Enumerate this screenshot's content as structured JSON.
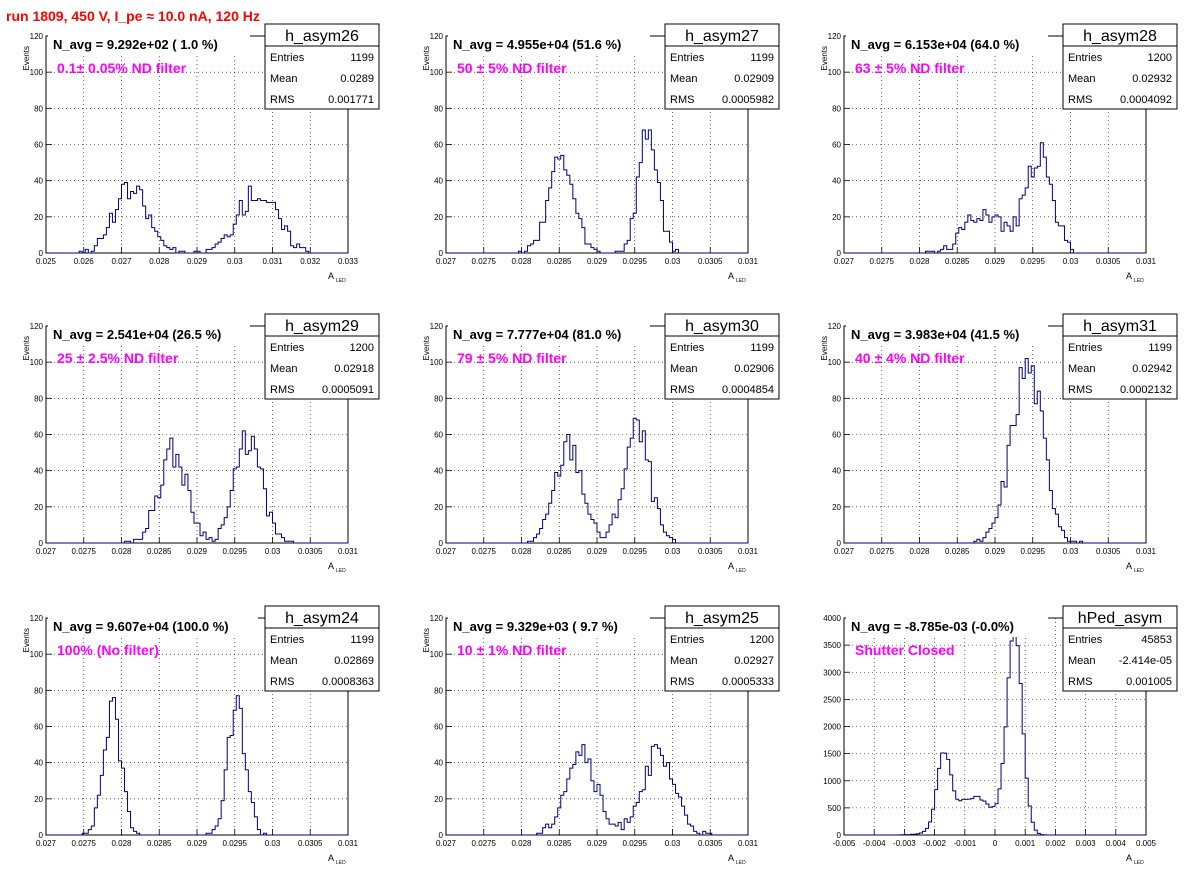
{
  "page": {
    "title": "run 1809,   450 V, I_pe ≈ 10.0 nA, 120 Hz",
    "colors": {
      "title": "#ff0000",
      "annotation": "#ff00ff",
      "histogram": "#000080",
      "grid": "#000000"
    }
  },
  "chart_data": [
    {
      "type": "bar",
      "histogram_name": "h_asym26",
      "title": "N_avg = 9.292e+02 ( 1.0 %)",
      "annotation": "0.1± 0.05% ND filter",
      "stats": [
        [
          "Entries",
          "1199"
        ],
        [
          "Mean",
          "0.0289"
        ],
        [
          "RMS",
          "0.001771"
        ]
      ],
      "xlabel": "A",
      "xlabel_sub": "LED",
      "ylabel": "Events",
      "xlim": [
        0.025,
        0.033
      ],
      "ylim": [
        0,
        120
      ],
      "xticks": [
        0.025,
        0.026,
        0.027,
        0.028,
        0.029,
        0.03,
        0.031,
        0.032,
        0.033
      ],
      "xtick_labels": [
        "0.025",
        "0.026",
        "0.027",
        "0.028",
        "0.029",
        "0.03",
        "0.031",
        "0.032",
        "0.033"
      ],
      "yticks": [
        0,
        20,
        40,
        60,
        80,
        100,
        120
      ],
      "ytick_labels": [
        "0",
        "20",
        "40",
        "60",
        "80",
        "100",
        "120"
      ],
      "bins": {
        "min": 0.025,
        "max": 0.033,
        "n": 100
      },
      "peaks": [
        {
          "mean": 0.02725,
          "sigma": 0.00045,
          "height": 35
        },
        {
          "mean": 0.0306,
          "sigma": 0.00052,
          "height": 34
        }
      ],
      "seed": 26
    },
    {
      "type": "bar",
      "histogram_name": "h_asym27",
      "title": "N_avg = 4.955e+04 (51.6 %)",
      "annotation": "50 ± 5% ND filter",
      "stats": [
        [
          "Entries",
          "1199"
        ],
        [
          "Mean",
          "0.02909"
        ],
        [
          "RMS",
          "0.0005982"
        ]
      ],
      "xlabel": "A",
      "xlabel_sub": "LED",
      "ylabel": "Events",
      "xlim": [
        0.027,
        0.031
      ],
      "ylim": [
        0,
        120
      ],
      "xticks": [
        0.027,
        0.0275,
        0.028,
        0.0285,
        0.029,
        0.0295,
        0.03,
        0.0305,
        0.031
      ],
      "xtick_labels": [
        "0.027",
        "0.0275",
        "0.028",
        "0.0285",
        "0.029",
        "0.0295",
        "0.03",
        "0.0305",
        "0.031"
      ],
      "yticks": [
        0,
        20,
        40,
        60,
        80,
        100,
        120
      ],
      "ytick_labels": [
        "0",
        "20",
        "40",
        "60",
        "80",
        "100",
        "120"
      ],
      "bins": {
        "min": 0.027,
        "max": 0.031,
        "n": 100
      },
      "peaks": [
        {
          "mean": 0.02852,
          "sigma": 0.00017,
          "height": 50
        },
        {
          "mean": 0.02968,
          "sigma": 0.00013,
          "height": 66
        }
      ],
      "seed": 27
    },
    {
      "type": "bar",
      "histogram_name": "h_asym28",
      "title": "N_avg = 6.153e+04 (64.0 %)",
      "annotation": "63 ± 5% ND filter",
      "stats": [
        [
          "Entries",
          "1200"
        ],
        [
          "Mean",
          "0.02932"
        ],
        [
          "RMS",
          "0.0004092"
        ]
      ],
      "xlabel": "A",
      "xlabel_sub": "LED",
      "ylabel": "Events",
      "xlim": [
        0.027,
        0.031
      ],
      "ylim": [
        0,
        120
      ],
      "xticks": [
        0.027,
        0.0275,
        0.028,
        0.0285,
        0.029,
        0.0295,
        0.03,
        0.0305,
        0.031
      ],
      "xtick_labels": [
        "0.027",
        "0.0275",
        "0.028",
        "0.0285",
        "0.029",
        "0.0295",
        "0.03",
        "0.0305",
        "0.031"
      ],
      "yticks": [
        0,
        20,
        40,
        60,
        80,
        100,
        120
      ],
      "ytick_labels": [
        "0",
        "20",
        "40",
        "60",
        "80",
        "100",
        "120"
      ],
      "bins": {
        "min": 0.027,
        "max": 0.031,
        "n": 100
      },
      "peaks": [
        {
          "mean": 0.02885,
          "sigma": 0.00024,
          "height": 24
        },
        {
          "mean": 0.02958,
          "sigma": 0.00018,
          "height": 54
        }
      ],
      "seed": 28
    },
    {
      "type": "bar",
      "histogram_name": "h_asym29",
      "title": "N_avg = 2.541e+04 (26.5 %)",
      "annotation": "25 ± 2.5% ND filter",
      "stats": [
        [
          "Entries",
          "1200"
        ],
        [
          "Mean",
          "0.02918"
        ],
        [
          "RMS",
          "0.0005091"
        ]
      ],
      "xlabel": "A",
      "xlabel_sub": "LED",
      "ylabel": "Events",
      "xlim": [
        0.027,
        0.031
      ],
      "ylim": [
        0,
        120
      ],
      "xticks": [
        0.027,
        0.0275,
        0.028,
        0.0285,
        0.029,
        0.0295,
        0.03,
        0.0305,
        0.031
      ],
      "xtick_labels": [
        "0.027",
        "0.0275",
        "0.028",
        "0.0285",
        "0.029",
        "0.0295",
        "0.03",
        "0.0305",
        "0.031"
      ],
      "yticks": [
        0,
        20,
        40,
        60,
        80,
        100,
        120
      ],
      "ytick_labels": [
        "0",
        "20",
        "40",
        "60",
        "80",
        "100",
        "120"
      ],
      "bins": {
        "min": 0.027,
        "max": 0.031,
        "n": 100
      },
      "peaks": [
        {
          "mean": 0.02868,
          "sigma": 0.00019,
          "height": 50
        },
        {
          "mean": 0.02968,
          "sigma": 0.00018,
          "height": 57
        }
      ],
      "seed": 29
    },
    {
      "type": "bar",
      "histogram_name": "h_asym30",
      "title": "N_avg = 7.777e+04 (81.0 %)",
      "annotation": "79 ± 5% ND filter",
      "stats": [
        [
          "Entries",
          "1199"
        ],
        [
          "Mean",
          "0.02906"
        ],
        [
          "RMS",
          "0.0004854"
        ]
      ],
      "xlabel": "A",
      "xlabel_sub": "LED",
      "ylabel": "Events",
      "xlim": [
        0.027,
        0.031
      ],
      "ylim": [
        0,
        120
      ],
      "xticks": [
        0.027,
        0.0275,
        0.028,
        0.0285,
        0.029,
        0.0295,
        0.03,
        0.0305,
        0.031
      ],
      "xtick_labels": [
        "0.027",
        "0.0275",
        "0.028",
        "0.0285",
        "0.029",
        "0.0295",
        "0.03",
        "0.0305",
        "0.031"
      ],
      "yticks": [
        0,
        20,
        40,
        60,
        80,
        100,
        120
      ],
      "ytick_labels": [
        "0",
        "20",
        "40",
        "60",
        "80",
        "100",
        "120"
      ],
      "bins": {
        "min": 0.027,
        "max": 0.031,
        "n": 100
      },
      "peaks": [
        {
          "mean": 0.02863,
          "sigma": 0.00018,
          "height": 54
        },
        {
          "mean": 0.02953,
          "sigma": 0.00017,
          "height": 63
        }
      ],
      "seed": 30
    },
    {
      "type": "bar",
      "histogram_name": "h_asym31",
      "title": "N_avg = 3.983e+04 (41.5 %)",
      "annotation": "40 ± 4% ND filter",
      "stats": [
        [
          "Entries",
          "1199"
        ],
        [
          "Mean",
          "0.02942"
        ],
        [
          "RMS",
          "0.0002132"
        ]
      ],
      "xlabel": "A",
      "xlabel_sub": "LED",
      "ylabel": "Events",
      "xlim": [
        0.027,
        0.031
      ],
      "ylim": [
        0,
        120
      ],
      "xticks": [
        0.027,
        0.0275,
        0.028,
        0.0285,
        0.029,
        0.0295,
        0.03,
        0.0305,
        0.031
      ],
      "xtick_labels": [
        "0.027",
        "0.0275",
        "0.028",
        "0.0285",
        "0.029",
        "0.0295",
        "0.03",
        "0.0305",
        "0.031"
      ],
      "yticks": [
        0,
        20,
        40,
        60,
        80,
        100,
        120
      ],
      "ytick_labels": [
        "0",
        "20",
        "40",
        "60",
        "80",
        "100",
        "120"
      ],
      "bins": {
        "min": 0.027,
        "max": 0.031,
        "n": 100
      },
      "peaks": [
        {
          "mean": 0.02943,
          "sigma": 0.00021,
          "height": 98
        }
      ],
      "seed": 31
    },
    {
      "type": "bar",
      "histogram_name": "h_asym24",
      "title": "N_avg = 9.607e+04 (100.0 %)",
      "annotation": "100% (No filter)",
      "stats": [
        [
          "Entries",
          "1199"
        ],
        [
          "Mean",
          "0.02869"
        ],
        [
          "RMS",
          "0.0008363"
        ]
      ],
      "xlabel": "A",
      "xlabel_sub": "LED",
      "ylabel": "Events",
      "xlim": [
        0.027,
        0.031
      ],
      "ylim": [
        0,
        120
      ],
      "xticks": [
        0.027,
        0.0275,
        0.028,
        0.0285,
        0.029,
        0.0295,
        0.03,
        0.0305,
        0.031
      ],
      "xtick_labels": [
        "0.027",
        "0.0275",
        "0.028",
        "0.0285",
        "0.029",
        "0.0295",
        "0.03",
        "0.0305",
        "0.031"
      ],
      "yticks": [
        0,
        20,
        40,
        60,
        80,
        100,
        120
      ],
      "ytick_labels": [
        "0",
        "20",
        "40",
        "60",
        "80",
        "100",
        "120"
      ],
      "bins": {
        "min": 0.027,
        "max": 0.031,
        "n": 100
      },
      "peaks": [
        {
          "mean": 0.02788,
          "sigma": 0.00012,
          "height": 68
        },
        {
          "mean": 0.02953,
          "sigma": 0.00012,
          "height": 70
        }
      ],
      "seed": 24
    },
    {
      "type": "bar",
      "histogram_name": "h_asym25",
      "title": "N_avg = 9.329e+03 ( 9.7 %)",
      "annotation": "10 ± 1% ND filter",
      "stats": [
        [
          "Entries",
          "1200"
        ],
        [
          "Mean",
          "0.02927"
        ],
        [
          "RMS",
          "0.0005333"
        ]
      ],
      "xlabel": "A",
      "xlabel_sub": "LED",
      "ylabel": "Events",
      "xlim": [
        0.027,
        0.031
      ],
      "ylim": [
        0,
        120
      ],
      "xticks": [
        0.027,
        0.0275,
        0.028,
        0.0285,
        0.029,
        0.0295,
        0.03,
        0.0305,
        0.031
      ],
      "xtick_labels": [
        "0.027",
        "0.0275",
        "0.028",
        "0.0285",
        "0.029",
        "0.0295",
        "0.03",
        "0.0305",
        "0.031"
      ],
      "yticks": [
        0,
        20,
        40,
        60,
        80,
        100,
        120
      ],
      "ytick_labels": [
        "0",
        "20",
        "40",
        "60",
        "80",
        "100",
        "120"
      ],
      "bins": {
        "min": 0.027,
        "max": 0.031,
        "n": 100
      },
      "peaks": [
        {
          "mean": 0.02878,
          "sigma": 0.0002,
          "height": 46
        },
        {
          "mean": 0.0298,
          "sigma": 0.00022,
          "height": 43
        }
      ],
      "seed": 25
    },
    {
      "type": "bar",
      "histogram_name": "hPed_asym",
      "title": "N_avg = -8.785e-03 (-0.0%)",
      "annotation": "Shutter Closed",
      "stats": [
        [
          "Entries",
          "45853"
        ],
        [
          "Mean",
          "-2.414e-05"
        ],
        [
          "RMS",
          "0.001005"
        ]
      ],
      "xlabel": "A",
      "xlabel_sub": "LED",
      "ylabel": "",
      "xlim": [
        -0.005,
        0.005
      ],
      "ylim": [
        0,
        4000
      ],
      "xticks": [
        -0.005,
        -0.004,
        -0.003,
        -0.002,
        -0.001,
        0,
        0.001,
        0.002,
        0.003,
        0.004,
        0.005
      ],
      "xtick_labels": [
        "-0.005",
        "-0.004",
        "-0.003",
        "-0.002",
        "-0.001",
        "0",
        "0.001",
        "0.002",
        "0.003",
        "0.004",
        "0.005"
      ],
      "yticks": [
        0,
        500,
        1000,
        1500,
        2000,
        2500,
        3000,
        3500,
        4000
      ],
      "ytick_labels": [
        "0",
        "500",
        "1000",
        "1500",
        "2000",
        "2500",
        "3000",
        "3500",
        "4000"
      ],
      "bins": {
        "min": -0.005,
        "max": 0.005,
        "n": 100
      },
      "peaks": [
        {
          "mean": -0.0017,
          "sigma": 0.00022,
          "height": 1300
        },
        {
          "mean": -0.0007,
          "sigma": 0.0007,
          "height": 700
        },
        {
          "mean": 0.00065,
          "sigma": 0.00025,
          "height": 3700
        }
      ],
      "seed": 99
    }
  ]
}
